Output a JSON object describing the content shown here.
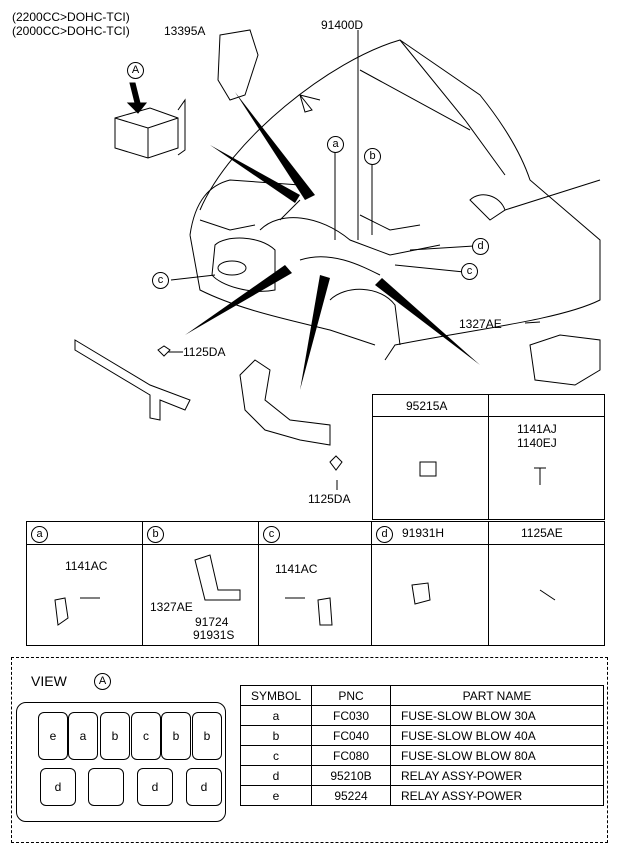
{
  "engine_notes": {
    "line1": "(2200CC>DOHC-TCI)",
    "line2": "(2000CC>DOHC-TCI)",
    "part_13395A": "13395A"
  },
  "labels": {
    "main_harness": "91400D",
    "bolt_1327AE": "1327AE",
    "bolt_1125DA_upper": "1125DA",
    "bolt_1125DA_lower": "1125DA",
    "callout_a": "a",
    "callout_b": "b",
    "callout_c_left": "c",
    "callout_c_right": "c",
    "callout_d": "d",
    "view_marker": "A"
  },
  "upper_table": {
    "col1_header": "95215A",
    "col2_header": "",
    "col2_part1": "1141AJ",
    "col2_part2": "1140EJ"
  },
  "detail_table": {
    "cells": [
      {
        "circle": "a",
        "header": "",
        "parts": [
          "1141AC"
        ]
      },
      {
        "circle": "b",
        "header": "",
        "parts": [
          "1327AE",
          "91724",
          "91931S"
        ]
      },
      {
        "circle": "c",
        "header": "",
        "parts": [
          "1141AC"
        ]
      },
      {
        "circle": "d",
        "header": "91931H",
        "parts": []
      },
      {
        "circle": "",
        "header": "1125AE",
        "parts": []
      }
    ]
  },
  "view": {
    "label": "VIEW",
    "marker": "A",
    "fuse_row1": [
      "e",
      "a",
      "b",
      "c",
      "b",
      "b"
    ],
    "fuse_row2": [
      "d",
      "",
      "d",
      "d"
    ]
  },
  "parts_table": {
    "headers": [
      "SYMBOL",
      "PNC",
      "PART NAME"
    ],
    "rows": [
      {
        "symbol": "a",
        "pnc": "FC030",
        "name": "FUSE-SLOW BLOW 30A"
      },
      {
        "symbol": "b",
        "pnc": "FC040",
        "name": "FUSE-SLOW BLOW 40A"
      },
      {
        "symbol": "c",
        "pnc": "FC080",
        "name": "FUSE-SLOW BLOW 80A"
      },
      {
        "symbol": "d",
        "pnc": "95210B",
        "name": "RELAY ASSY-POWER"
      },
      {
        "symbol": "e",
        "pnc": "95224",
        "name": "RELAY ASSY-POWER"
      }
    ]
  }
}
